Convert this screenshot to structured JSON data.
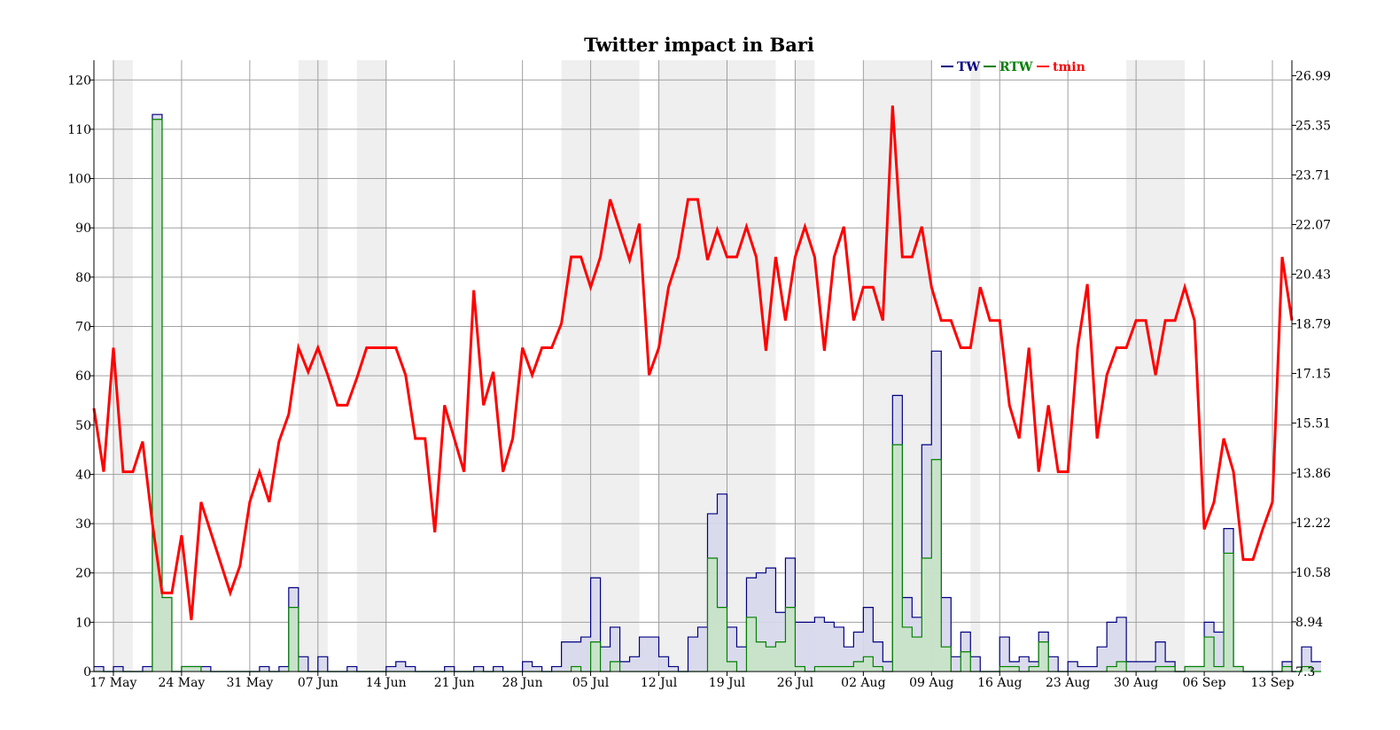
{
  "chart_data": {
    "type": "area",
    "title": "Twitter impact in Bari",
    "x_tick_labels": [
      "17 May",
      "24 May",
      "31 May",
      "07 Jun",
      "14 Jun",
      "21 Jun",
      "28 Jun",
      "05 Jul",
      "12 Jul",
      "19 Jul",
      "26 Jul",
      "02 Aug",
      "09 Aug",
      "16 Aug",
      "23 Aug",
      "30 Aug",
      "06 Sep",
      "13 Sep"
    ],
    "x_range_days": [
      0,
      123
    ],
    "y_left": {
      "ylim": [
        0,
        124
      ],
      "ticks": [
        "0",
        "10",
        "20",
        "30",
        "40",
        "50",
        "60",
        "70",
        "80",
        "90",
        "100",
        "110",
        "120"
      ]
    },
    "y_right": {
      "ylim": [
        7.3,
        27.5
      ],
      "ticks": [
        "7.3",
        "8.94",
        "10.58",
        "12.22",
        "13.86",
        "15.51",
        "17.15",
        "18.79",
        "20.43",
        "22.07",
        "23.71",
        "25.35",
        "26.99"
      ]
    },
    "weekend_shading_days": [
      [
        2,
        4
      ],
      [
        21,
        24
      ],
      [
        27,
        30
      ],
      [
        48,
        56
      ],
      [
        58,
        70
      ],
      [
        72,
        74
      ],
      [
        79,
        86
      ],
      [
        90,
        91
      ],
      [
        106,
        112
      ]
    ],
    "grid": true,
    "legend": {
      "position": "top-right",
      "entries": [
        "TW",
        "RTW",
        "tmin"
      ]
    },
    "series": [
      {
        "name": "TW",
        "kind": "step-area",
        "color": "#000080",
        "fill": "#d7d7ec",
        "values": [
          1,
          0,
          1,
          0,
          0,
          1,
          113,
          15,
          0,
          1,
          1,
          1,
          0,
          0,
          0,
          0,
          0,
          1,
          0,
          1,
          17,
          3,
          0,
          3,
          0,
          0,
          1,
          0,
          0,
          0,
          1,
          2,
          1,
          0,
          0,
          0,
          1,
          0,
          0,
          1,
          0,
          1,
          0,
          0,
          2,
          1,
          0,
          1,
          6,
          6,
          7,
          19,
          5,
          9,
          2,
          3,
          7,
          7,
          3,
          1,
          0,
          7,
          9,
          32,
          36,
          9,
          5,
          19,
          20,
          21,
          12,
          23,
          10,
          10,
          11,
          10,
          9,
          5,
          8,
          13,
          6,
          2,
          56,
          15,
          11,
          46,
          65,
          15,
          3,
          8,
          3,
          0,
          0,
          7,
          2,
          3,
          2,
          8,
          3,
          0,
          2,
          1,
          1,
          5,
          10,
          11,
          2,
          2,
          2,
          6,
          2,
          0,
          1,
          1,
          10,
          8,
          29,
          1,
          0,
          0,
          0,
          0,
          2,
          0,
          5,
          2
        ]
      },
      {
        "name": "RTW",
        "kind": "step-area",
        "color": "#008000",
        "fill": "#c7e3c7",
        "values": [
          0,
          0,
          0,
          0,
          0,
          0,
          112,
          15,
          0,
          1,
          1,
          0,
          0,
          0,
          0,
          0,
          0,
          0,
          0,
          0,
          13,
          0,
          0,
          0,
          0,
          0,
          0,
          0,
          0,
          0,
          0,
          0,
          0,
          0,
          0,
          0,
          0,
          0,
          0,
          0,
          0,
          0,
          0,
          0,
          0,
          0,
          0,
          0,
          0,
          1,
          0,
          6,
          0,
          2,
          0,
          0,
          0,
          0,
          0,
          0,
          0,
          0,
          0,
          23,
          13,
          2,
          0,
          11,
          6,
          5,
          6,
          13,
          1,
          0,
          1,
          1,
          1,
          1,
          2,
          3,
          1,
          0,
          46,
          9,
          7,
          23,
          43,
          5,
          0,
          4,
          0,
          0,
          0,
          1,
          1,
          0,
          1,
          6,
          0,
          0,
          0,
          0,
          0,
          0,
          1,
          2,
          0,
          0,
          0,
          1,
          1,
          0,
          1,
          1,
          7,
          1,
          24,
          1,
          0,
          0,
          0,
          0,
          1,
          0,
          1,
          0
        ]
      },
      {
        "name": "tmin",
        "kind": "line",
        "color": "#ff0000",
        "values": [
          16.0,
          13.9,
          18.0,
          13.9,
          13.9,
          14.9,
          12.2,
          9.9,
          9.9,
          11.8,
          9.0,
          12.9,
          11.9,
          10.9,
          9.9,
          10.8,
          12.9,
          13.9,
          12.9,
          14.9,
          15.8,
          18.0,
          17.2,
          18.0,
          17.1,
          16.1,
          16.1,
          17.0,
          18.0,
          18.0,
          18.0,
          18.0,
          17.1,
          15.0,
          15.0,
          11.9,
          16.1,
          15.0,
          13.9,
          19.9,
          16.1,
          17.2,
          13.9,
          15.0,
          18.0,
          17.1,
          18.0,
          18.0,
          18.8,
          21.0,
          21.0,
          20.0,
          21.0,
          22.9,
          21.9,
          20.9,
          22.1,
          17.1,
          18.0,
          20.0,
          21.0,
          22.9,
          22.9,
          20.9,
          21.9,
          21.0,
          21.0,
          22.0,
          21.0,
          17.9,
          21.0,
          18.9,
          21.0,
          22.0,
          21.0,
          17.9,
          21.0,
          22.0,
          18.9,
          20.0,
          20.0,
          18.9,
          26.0,
          21.0,
          21.0,
          22.0,
          20.0,
          18.9,
          18.9,
          18.0,
          18.0,
          20.0,
          18.9,
          18.9,
          16.1,
          15.0,
          18.0,
          13.9,
          16.1,
          13.9,
          13.9,
          18.0,
          20.1,
          15.0,
          17.1,
          18.0,
          18.0,
          18.9,
          18.9,
          17.1,
          18.9,
          18.9,
          20.0,
          18.9,
          12.0,
          12.9,
          15.0,
          13.9,
          11.0,
          11.0,
          12.0,
          12.9,
          21.0,
          18.9
        ]
      }
    ]
  }
}
